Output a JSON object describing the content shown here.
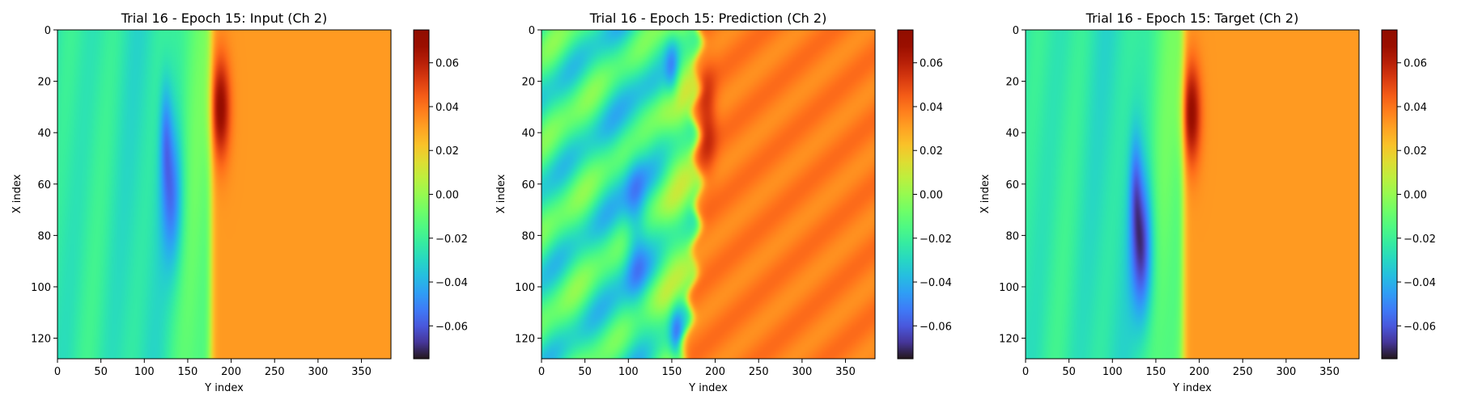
{
  "chart_data": [
    {
      "type": "heatmap",
      "title": "Trial 16 - Epoch 15: Input (Ch 2)",
      "xlabel": "Y index",
      "ylabel": "X index",
      "xlim": [
        0,
        384
      ],
      "ylim": [
        128,
        0
      ],
      "xticks": [
        0,
        50,
        100,
        150,
        200,
        250,
        300,
        350
      ],
      "yticks": [
        0,
        20,
        40,
        60,
        80,
        100,
        120
      ],
      "colormap": "turbo",
      "colorbar": {
        "range": [
          -0.075,
          0.075
        ],
        "ticks": [
          0.06,
          0.04,
          0.02,
          0.0,
          -0.02,
          -0.04,
          -0.06
        ],
        "tick_labels": [
          "0.06",
          "0.04",
          "0.02",
          "0.00",
          "−0.02",
          "−0.04",
          "−0.06"
        ]
      },
      "field": {
        "variant": "input",
        "left_value": -0.025,
        "right_value": 0.032,
        "front_position": 176,
        "front_shift_bottom": 0,
        "upper_front_extent": 16,
        "hot_spot": {
          "x": 30,
          "y": 187,
          "value": 0.07
        },
        "cold_spot": {
          "x": 65,
          "y": 132,
          "value": -0.055
        }
      }
    },
    {
      "type": "heatmap",
      "title": "Trial 16 - Epoch 15: Prediction (Ch 2)",
      "xlabel": "Y index",
      "ylabel": "X index",
      "xlim": [
        0,
        384
      ],
      "ylim": [
        128,
        0
      ],
      "xticks": [
        0,
        50,
        100,
        150,
        200,
        250,
        300,
        350
      ],
      "yticks": [
        0,
        20,
        40,
        60,
        80,
        100,
        120
      ],
      "colormap": "turbo",
      "colorbar": {
        "range": [
          -0.075,
          0.075
        ],
        "ticks": [
          0.06,
          0.04,
          0.02,
          0.0,
          -0.02,
          -0.04,
          -0.06
        ],
        "tick_labels": [
          "0.06",
          "0.04",
          "0.02",
          "0.00",
          "−0.02",
          "−0.04",
          "−0.06"
        ]
      },
      "field": {
        "variant": "prediction",
        "left_value": -0.022,
        "right_value": 0.038,
        "front_position": 178,
        "front_shift_bottom": -18,
        "upper_front_extent": 20,
        "hot_spot": {
          "x": 35,
          "y": 190,
          "value": 0.058
        },
        "cold_spot": {
          "x": 75,
          "y": 108,
          "value": -0.045
        }
      }
    },
    {
      "type": "heatmap",
      "title": "Trial 16 - Epoch 15: Target (Ch 2)",
      "xlabel": "Y index",
      "ylabel": "X index",
      "xlim": [
        0,
        384
      ],
      "ylim": [
        128,
        0
      ],
      "xticks": [
        0,
        50,
        100,
        150,
        200,
        250,
        300,
        350
      ],
      "yticks": [
        0,
        20,
        40,
        60,
        80,
        100,
        120
      ],
      "colormap": "turbo",
      "colorbar": {
        "range": [
          -0.075,
          0.075
        ],
        "ticks": [
          0.06,
          0.04,
          0.02,
          0.0,
          -0.02,
          -0.04,
          -0.06
        ],
        "tick_labels": [
          "0.06",
          "0.04",
          "0.02",
          "0.00",
          "−0.02",
          "−0.04",
          "−0.06"
        ]
      },
      "field": {
        "variant": "target",
        "left_value": -0.025,
        "right_value": 0.032,
        "front_position": 181,
        "front_shift_bottom": 0,
        "upper_front_extent": 16,
        "hot_spot": {
          "x": 32,
          "y": 190,
          "value": 0.07
        },
        "cold_spot": {
          "x": 85,
          "y": 134,
          "value": -0.07
        }
      }
    }
  ]
}
